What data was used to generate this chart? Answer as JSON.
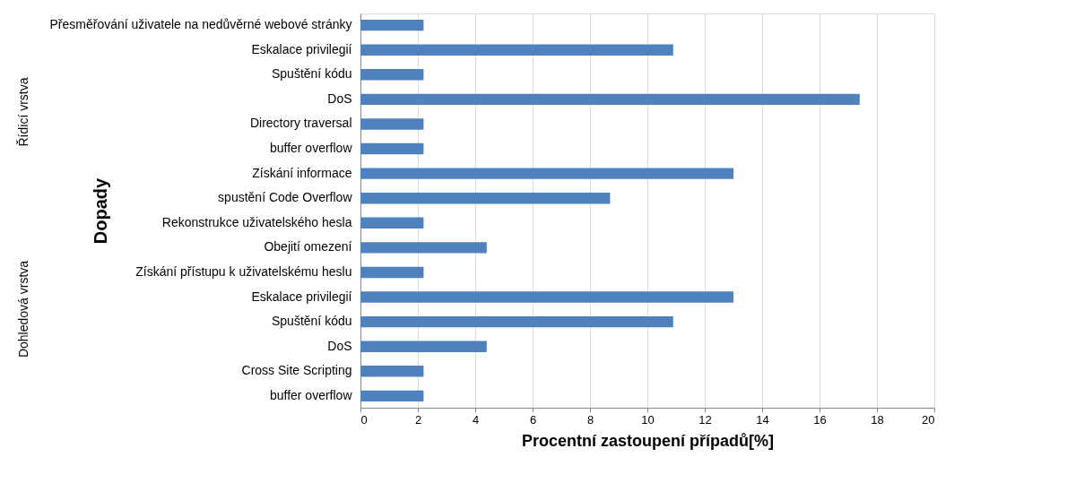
{
  "chart_data": {
    "type": "bar",
    "orientation": "horizontal",
    "xlabel": "Procentní zastoupení případů[%]",
    "ylabel": "Dopady",
    "categories": [
      "Přesměřování uživatele na nedůvěrné webové stránky",
      "Eskalace privilegií",
      "Spuštění kódu",
      "DoS",
      "Directory traversal",
      "buffer overflow",
      "Získání informace",
      "spustění Code Overflow",
      "Rekonstrukce uživatelského hesla",
      "Obejití omezení",
      "Získání přístupu k uživatelskému heslu",
      "Eskalace privilegií",
      "Spuštění kódu",
      "DoS",
      "Cross Site Scripting",
      "buffer overflow"
    ],
    "values": [
      2.2,
      10.9,
      2.2,
      17.4,
      2.2,
      2.2,
      13.0,
      8.7,
      2.2,
      4.4,
      2.2,
      13.0,
      10.9,
      4.4,
      2.2,
      2.2
    ],
    "color": "#4f81bd",
    "xlim": [
      0,
      20
    ],
    "xticks": [
      0,
      2,
      4,
      6,
      8,
      10,
      12,
      14,
      16,
      18,
      20
    ],
    "grid": "x",
    "annotations": [
      "Řídicí vrstva",
      "Dohledová vrstva"
    ]
  }
}
